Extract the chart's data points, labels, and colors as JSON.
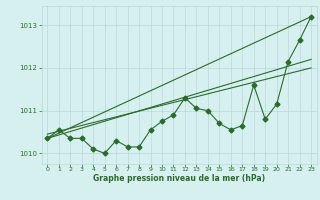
{
  "x": [
    0,
    1,
    2,
    3,
    4,
    5,
    6,
    7,
    8,
    9,
    10,
    11,
    12,
    13,
    14,
    15,
    16,
    17,
    18,
    19,
    20,
    21,
    22,
    23
  ],
  "line1": [
    1010.35,
    1010.55,
    1010.35,
    1010.35,
    1010.1,
    1010.0,
    1010.3,
    1010.15,
    1010.15,
    1010.55,
    1010.75,
    1010.9,
    1011.3,
    1011.05,
    1011.0,
    1010.7,
    1010.55,
    1010.65,
    1011.6,
    1010.8,
    1011.15,
    1012.15,
    1012.65,
    1013.2
  ],
  "trend1_x": [
    0,
    23
  ],
  "trend1_y": [
    1010.35,
    1013.2
  ],
  "trend2_x": [
    0,
    23
  ],
  "trend2_y": [
    1010.35,
    1012.2
  ],
  "trend3_x": [
    0,
    23
  ],
  "trend3_y": [
    1010.45,
    1012.0
  ],
  "ylim": [
    1009.75,
    1013.45
  ],
  "xlim": [
    -0.5,
    23.5
  ],
  "yticks": [
    1010,
    1011,
    1012,
    1013
  ],
  "xticks": [
    0,
    1,
    2,
    3,
    4,
    5,
    6,
    7,
    8,
    9,
    10,
    11,
    12,
    13,
    14,
    15,
    16,
    17,
    18,
    19,
    20,
    21,
    22,
    23
  ],
  "xlabel": "Graphe pression niveau de la mer (hPa)",
  "line_color": "#2d6a2d",
  "trend_color": "#2d6a2d",
  "bg_color": "#d6f0f0",
  "grid_color": "#b8d8d8",
  "tick_color": "#2d6a2d",
  "label_color": "#2d6a2d",
  "marker": "D",
  "marker_size": 2.5,
  "line_width": 0.8,
  "trend_lw": 0.8
}
